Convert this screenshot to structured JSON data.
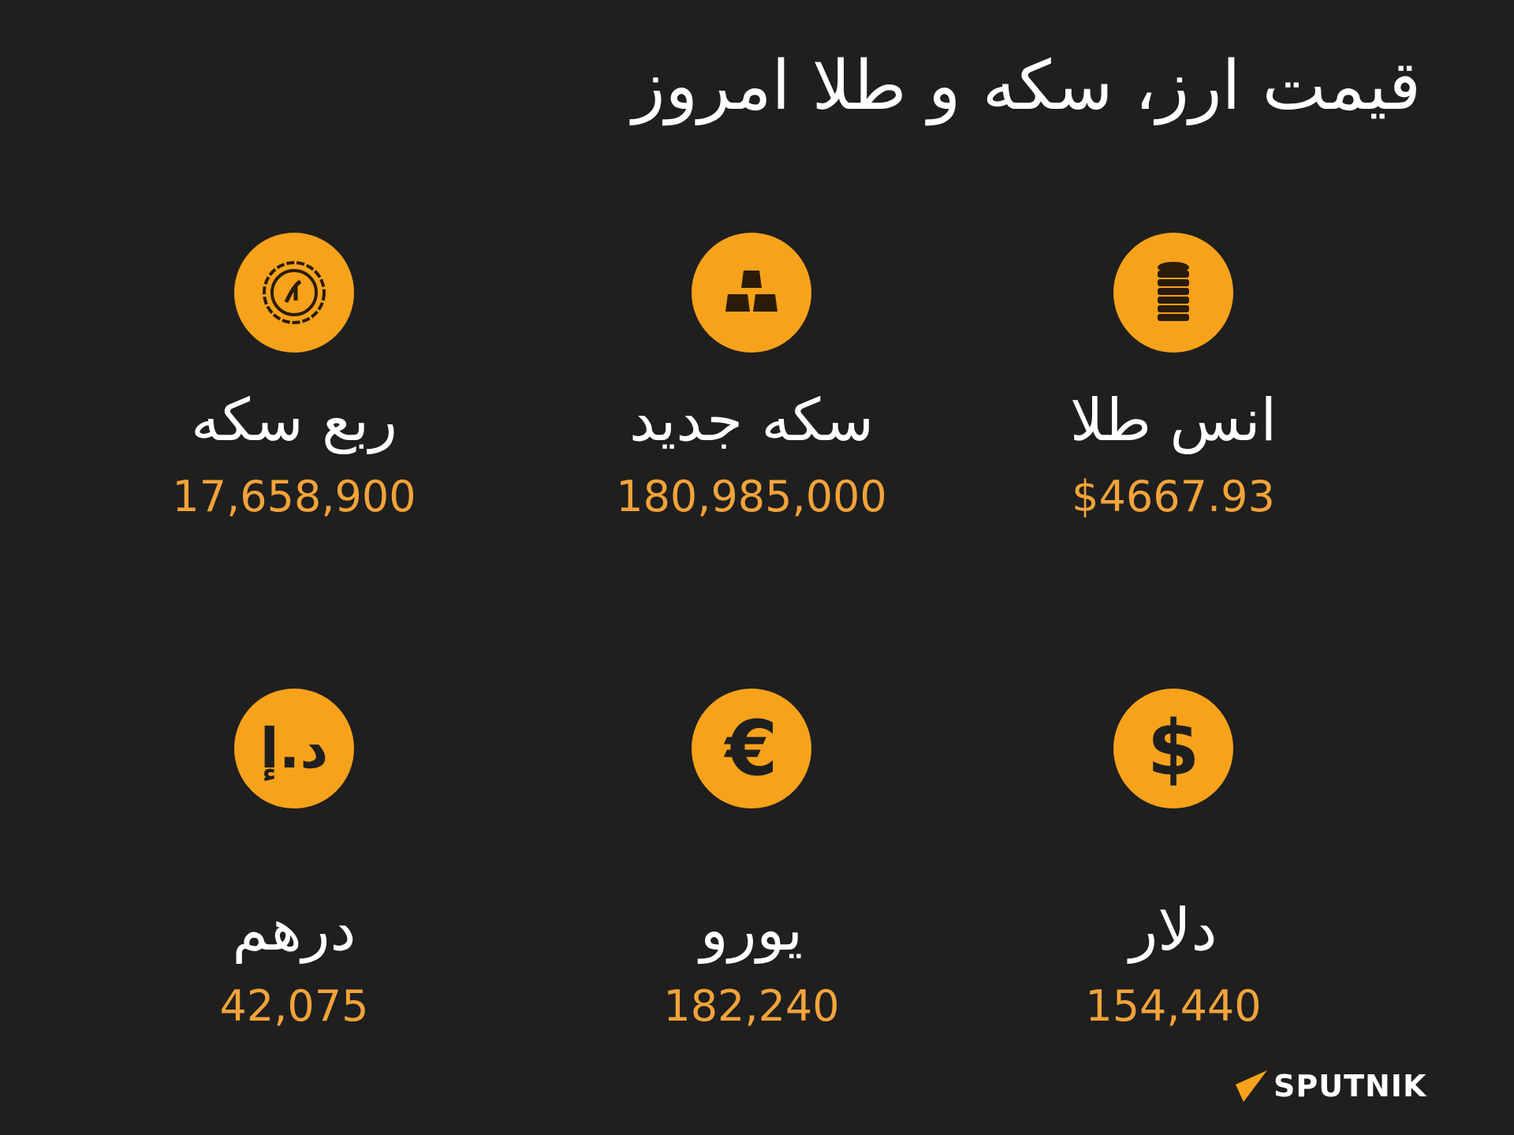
{
  "title": "قیمت ارز، سکه و طلا امروز",
  "accent_color": "#f7a21b",
  "items": [
    {
      "label": "انس طلا",
      "value": "$4667.93",
      "icon": "coin-stack-icon"
    },
    {
      "label": "سکه جدید",
      "value": "180,985,000",
      "icon": "gold-bars-icon"
    },
    {
      "label": "ربع سکه",
      "value": "17,658,900",
      "icon": "rial-coin-icon"
    },
    {
      "label": "دلار",
      "value": "154,440",
      "icon": "dollar-icon",
      "glyph": "$"
    },
    {
      "label": "یورو",
      "value": "182,240",
      "icon": "euro-icon",
      "glyph": "€"
    },
    {
      "label": "درهم",
      "value": "42,075",
      "icon": "dirham-icon",
      "glyph": "د.إ"
    }
  ],
  "logo": {
    "text": "SPUTNIK"
  }
}
